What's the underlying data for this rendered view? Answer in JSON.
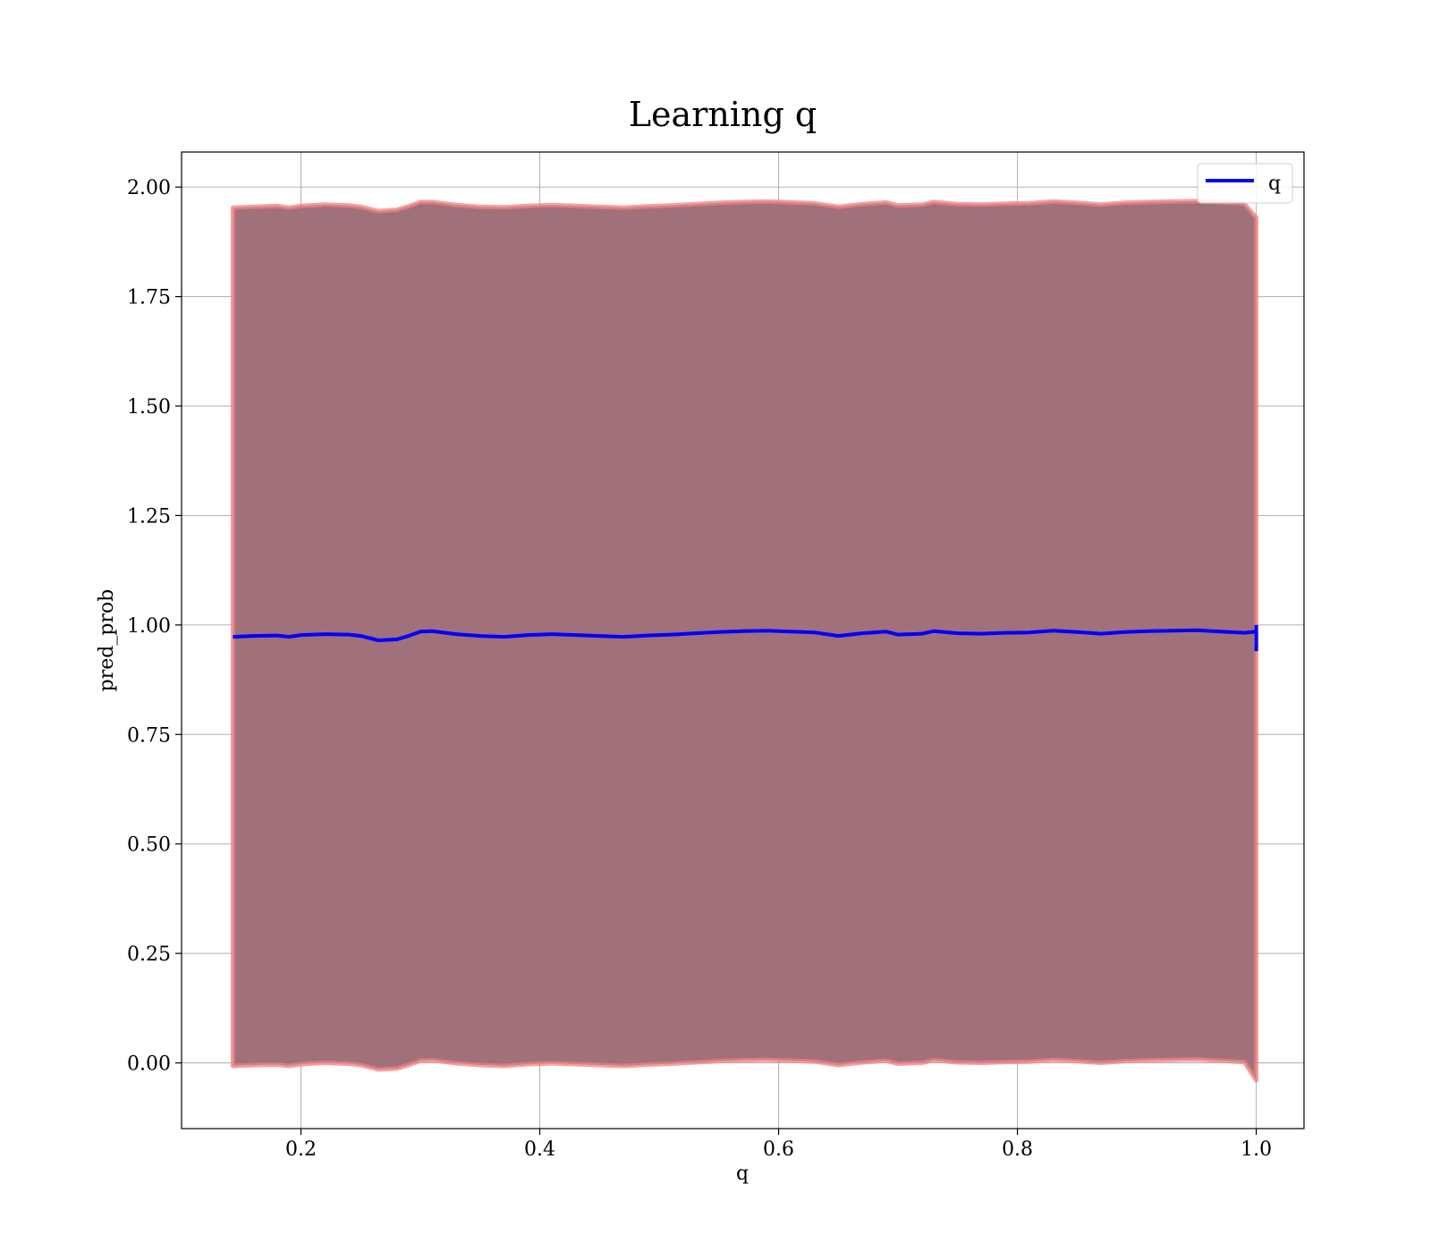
{
  "chart_data": {
    "type": "line",
    "title": "Learning q",
    "xlabel": "q",
    "ylabel": "pred_prob",
    "xlim": [
      0.1,
      1.04
    ],
    "ylim": [
      -0.15,
      2.08
    ],
    "xticks": [
      0.2,
      0.4,
      0.6,
      0.8,
      1.0
    ],
    "xtick_labels": [
      "0.2",
      "0.4",
      "0.6",
      "0.8",
      "1.0"
    ],
    "yticks": [
      0.0,
      0.25,
      0.5,
      0.75,
      1.0,
      1.25,
      1.5,
      1.75,
      2.0
    ],
    "ytick_labels": [
      "0.00",
      "0.25",
      "0.50",
      "0.75",
      "1.00",
      "1.25",
      "1.50",
      "1.75",
      "2.00"
    ],
    "grid": true,
    "legend": {
      "position": "upper right",
      "entries": [
        "q"
      ]
    },
    "x": [
      0.143,
      0.16,
      0.18,
      0.19,
      0.2,
      0.22,
      0.24,
      0.25,
      0.265,
      0.28,
      0.29,
      0.3,
      0.31,
      0.33,
      0.35,
      0.37,
      0.39,
      0.41,
      0.43,
      0.45,
      0.47,
      0.49,
      0.51,
      0.53,
      0.55,
      0.57,
      0.59,
      0.61,
      0.63,
      0.65,
      0.67,
      0.69,
      0.7,
      0.72,
      0.73,
      0.75,
      0.77,
      0.79,
      0.81,
      0.83,
      0.85,
      0.87,
      0.89,
      0.91,
      0.93,
      0.95,
      0.97,
      0.99,
      1.0
    ],
    "series": [
      {
        "name": "q",
        "color": "#0000ff",
        "values": [
          0.973,
          0.975,
          0.976,
          0.973,
          0.977,
          0.979,
          0.978,
          0.975,
          0.965,
          0.967,
          0.975,
          0.985,
          0.986,
          0.979,
          0.975,
          0.973,
          0.977,
          0.979,
          0.977,
          0.975,
          0.973,
          0.976,
          0.978,
          0.981,
          0.984,
          0.986,
          0.987,
          0.985,
          0.983,
          0.975,
          0.981,
          0.985,
          0.978,
          0.98,
          0.986,
          0.981,
          0.98,
          0.982,
          0.983,
          0.987,
          0.984,
          0.98,
          0.984,
          0.986,
          0.987,
          0.988,
          0.985,
          0.982,
          0.985
        ]
      },
      {
        "name": "",
        "role": "band",
        "color": "#a0707b",
        "edge_color": "#f08080",
        "upper": [
          1.953,
          1.955,
          1.957,
          1.953,
          1.957,
          1.96,
          1.958,
          1.955,
          1.945,
          1.948,
          1.956,
          1.966,
          1.966,
          1.959,
          1.955,
          1.954,
          1.957,
          1.959,
          1.957,
          1.955,
          1.953,
          1.956,
          1.958,
          1.961,
          1.964,
          1.966,
          1.967,
          1.965,
          1.963,
          1.955,
          1.961,
          1.965,
          1.958,
          1.96,
          1.966,
          1.961,
          1.96,
          1.962,
          1.963,
          1.967,
          1.964,
          1.96,
          1.964,
          1.966,
          1.967,
          1.968,
          1.965,
          1.962,
          1.93
        ],
        "lower": [
          -0.007,
          -0.005,
          -0.004,
          -0.007,
          -0.003,
          0.0,
          -0.002,
          -0.005,
          -0.015,
          -0.013,
          -0.005,
          0.005,
          0.006,
          -0.001,
          -0.005,
          -0.007,
          -0.003,
          -0.001,
          -0.003,
          -0.005,
          -0.007,
          -0.004,
          -0.002,
          0.001,
          0.004,
          0.006,
          0.007,
          0.005,
          0.003,
          -0.005,
          0.001,
          0.005,
          -0.002,
          0.0,
          0.006,
          0.001,
          0.0,
          0.002,
          0.003,
          0.007,
          0.004,
          0.0,
          0.004,
          0.006,
          0.007,
          0.008,
          0.005,
          0.002,
          -0.04
        ]
      }
    ]
  }
}
